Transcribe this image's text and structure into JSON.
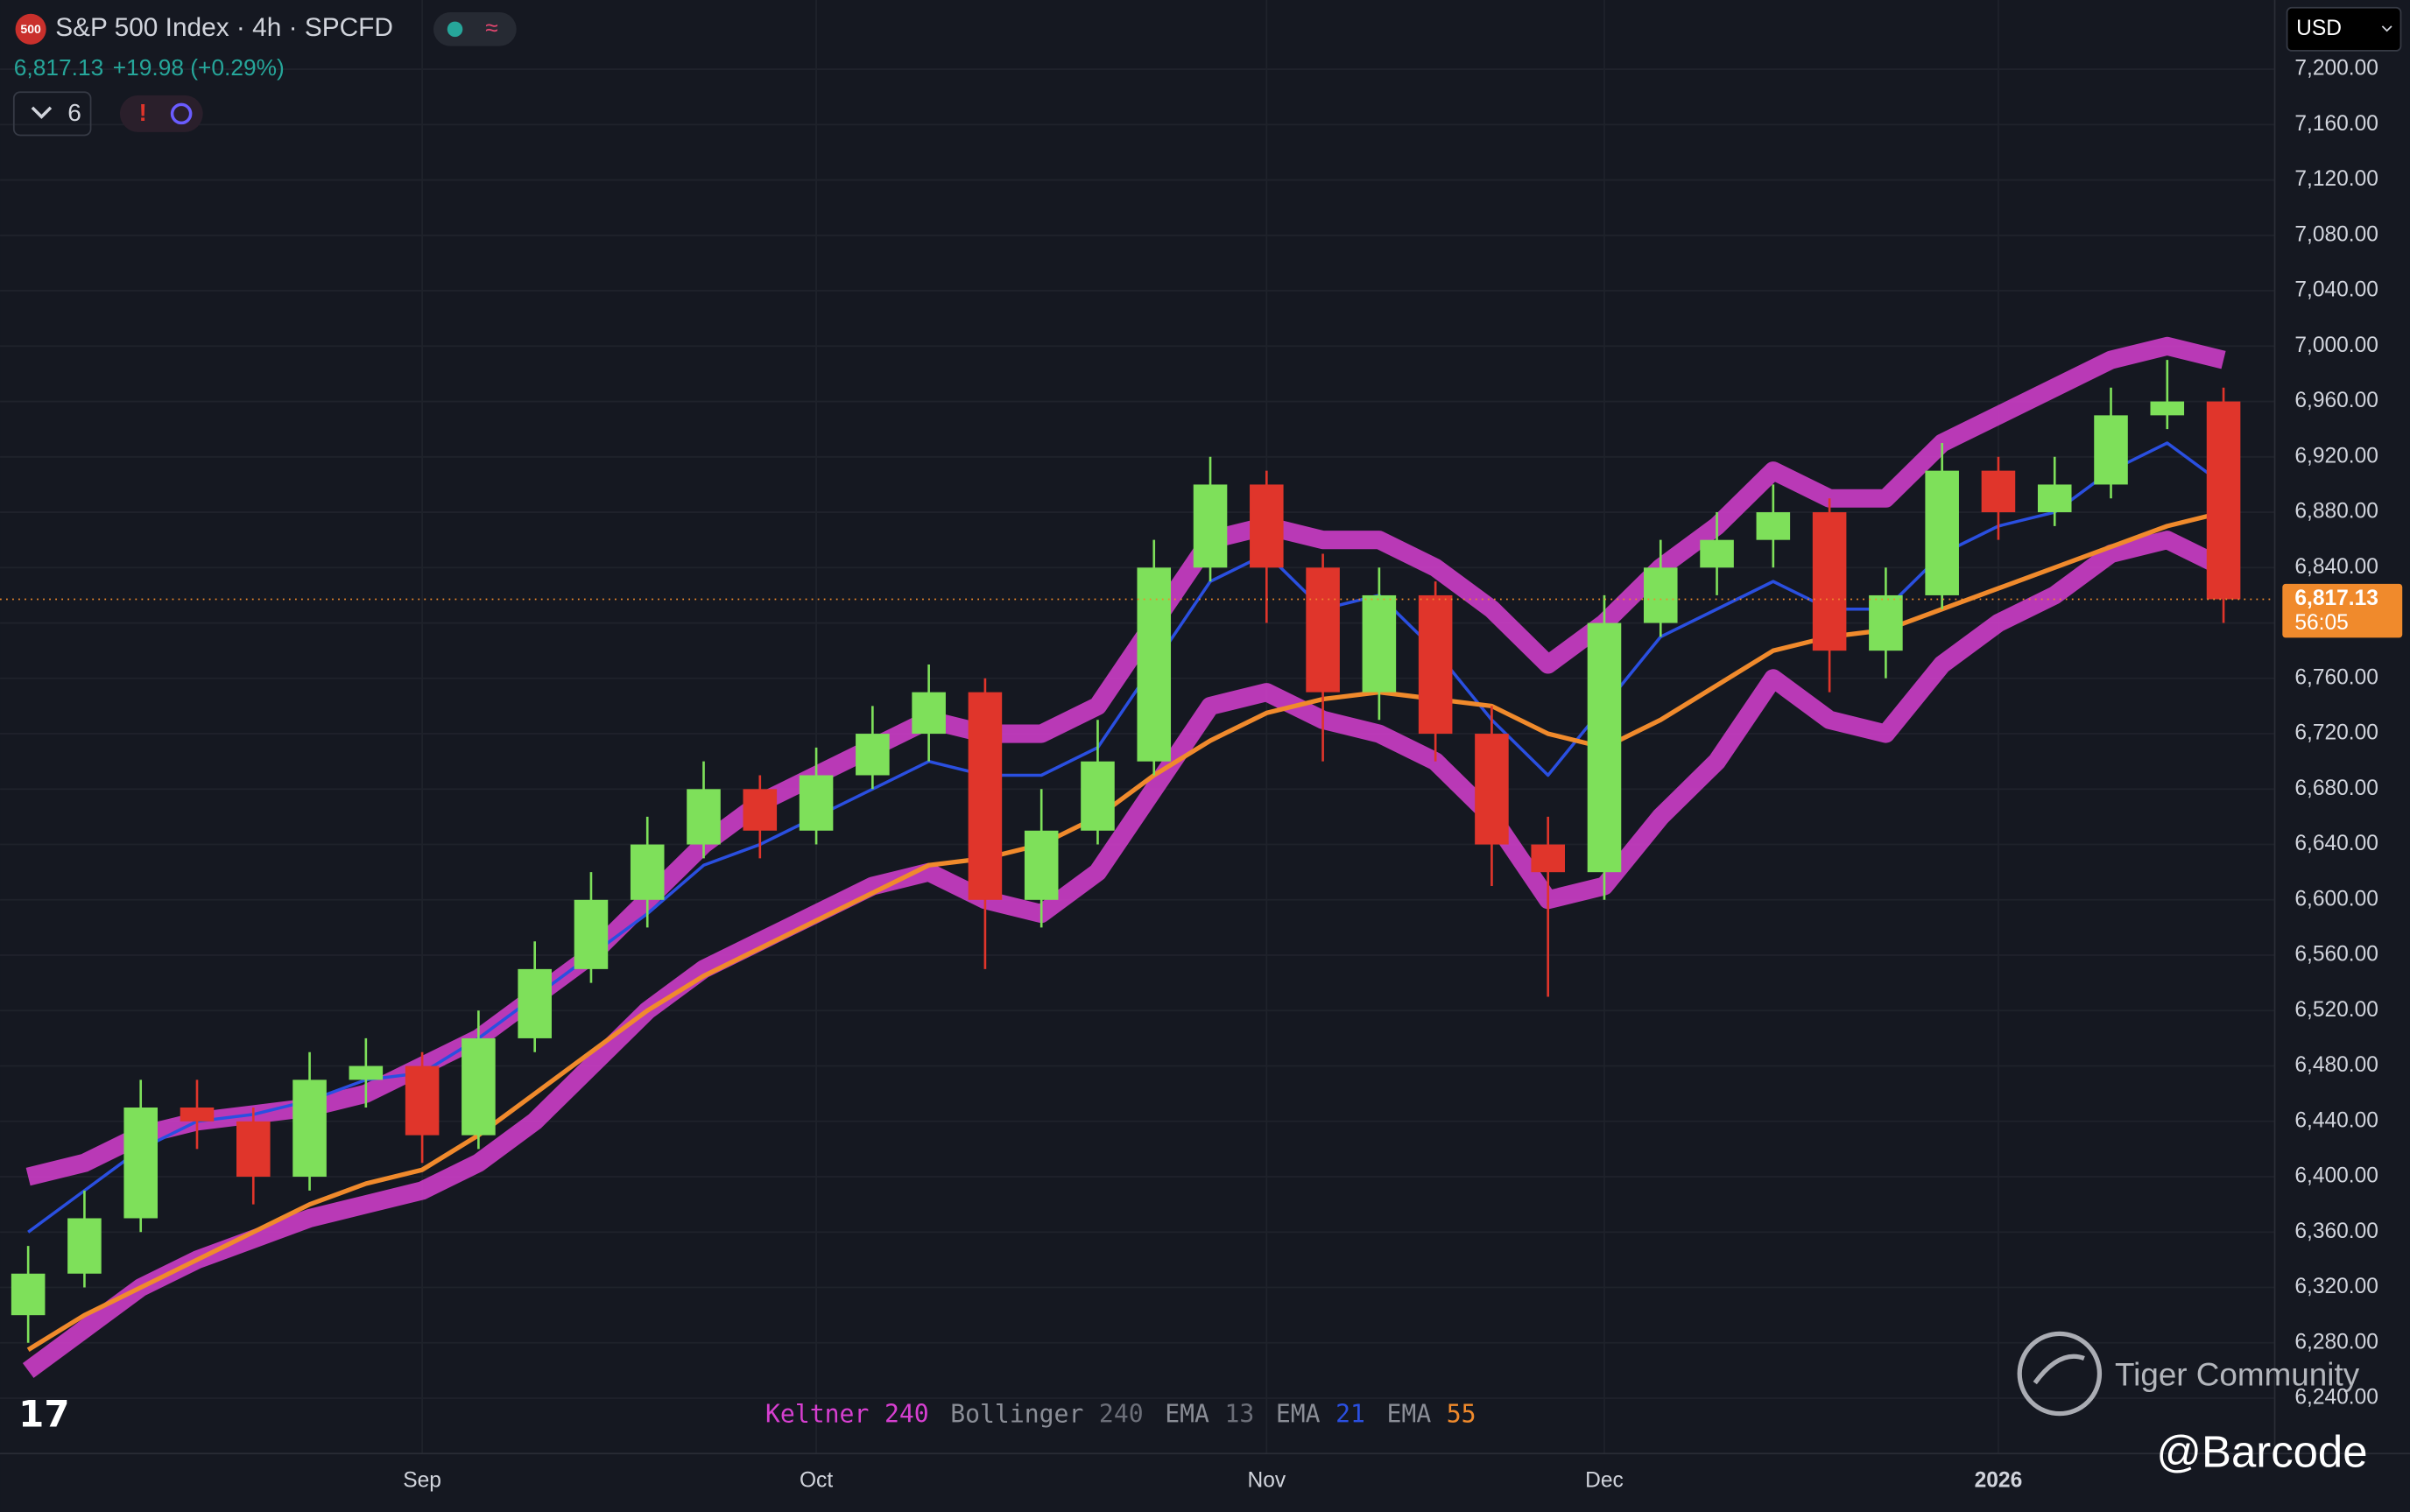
{
  "chart_data": {
    "type": "candlestick",
    "badge": "500",
    "title": "S&P 500 Index · 4h · SPCFD",
    "change": "+19.98 (+0.29%)",
    "indicator_count": "6",
    "currency": "USD",
    "countdown": "56:05",
    "last_price": {
      "value": 6817.13,
      "label": "6,817.13"
    },
    "up_color": "#7ee05a",
    "down_color": "#e0352b",
    "categories": [
      null,
      null,
      null,
      null,
      null,
      null,
      null,
      "Sep",
      null,
      null,
      null,
      null,
      null,
      null,
      "Oct",
      null,
      null,
      null,
      null,
      null,
      null,
      null,
      "Nov",
      null,
      null,
      null,
      null,
      null,
      "Dec",
      null,
      null,
      null,
      null,
      null,
      null,
      "2026",
      null,
      null,
      null,
      null
    ],
    "ohlc": [
      [
        6300,
        6350,
        6280,
        6330
      ],
      [
        6330,
        6390,
        6320,
        6370
      ],
      [
        6370,
        6470,
        6360,
        6450
      ],
      [
        6450,
        6470,
        6420,
        6440
      ],
      [
        6440,
        6450,
        6380,
        6400
      ],
      [
        6400,
        6490,
        6390,
        6470
      ],
      [
        6470,
        6500,
        6450,
        6480
      ],
      [
        6480,
        6490,
        6410,
        6430
      ],
      [
        6430,
        6520,
        6420,
        6500
      ],
      [
        6500,
        6570,
        6490,
        6550
      ],
      [
        6550,
        6620,
        6540,
        6600
      ],
      [
        6600,
        6660,
        6580,
        6640
      ],
      [
        6640,
        6700,
        6630,
        6680
      ],
      [
        6680,
        6690,
        6630,
        6650
      ],
      [
        6650,
        6710,
        6640,
        6690
      ],
      [
        6690,
        6740,
        6680,
        6720
      ],
      [
        6720,
        6770,
        6700,
        6750
      ],
      [
        6750,
        6760,
        6550,
        6600
      ],
      [
        6600,
        6680,
        6580,
        6650
      ],
      [
        6650,
        6730,
        6640,
        6700
      ],
      [
        6700,
        6860,
        6690,
        6840
      ],
      [
        6840,
        6920,
        6830,
        6900
      ],
      [
        6900,
        6910,
        6800,
        6840
      ],
      [
        6840,
        6850,
        6700,
        6750
      ],
      [
        6750,
        6840,
        6730,
        6820
      ],
      [
        6820,
        6830,
        6700,
        6720
      ],
      [
        6720,
        6740,
        6610,
        6640
      ],
      [
        6640,
        6660,
        6530,
        6620
      ],
      [
        6620,
        6820,
        6600,
        6800
      ],
      [
        6800,
        6860,
        6790,
        6840
      ],
      [
        6840,
        6880,
        6820,
        6860
      ],
      [
        6860,
        6900,
        6840,
        6880
      ],
      [
        6880,
        6890,
        6750,
        6780
      ],
      [
        6780,
        6840,
        6760,
        6820
      ],
      [
        6820,
        6930,
        6810,
        6910
      ],
      [
        6910,
        6920,
        6860,
        6880
      ],
      [
        6880,
        6920,
        6870,
        6900
      ],
      [
        6900,
        6970,
        6890,
        6950
      ],
      [
        6950,
        6990,
        6940,
        6960
      ],
      [
        6960,
        6970,
        6800,
        6817.13
      ]
    ],
    "indicators": [
      {
        "name": "Keltner",
        "period": 240,
        "color": "#d63fd0",
        "upper": [
          6400,
          6410,
          6430,
          6440,
          6445,
          6450,
          6460,
          6480,
          6500,
          6530,
          6560,
          6600,
          6640,
          6670,
          6690,
          6710,
          6730,
          6720,
          6720,
          6740,
          6800,
          6860,
          6870,
          6860,
          6860,
          6840,
          6810,
          6770,
          6800,
          6840,
          6870,
          6910,
          6890,
          6890,
          6930,
          6950,
          6970,
          6990,
          7000,
          6990
        ],
        "lower": [
          6260,
          6290,
          6320,
          6340,
          6355,
          6370,
          6380,
          6390,
          6410,
          6440,
          6480,
          6520,
          6550,
          6570,
          6590,
          6610,
          6620,
          6600,
          6590,
          6620,
          6680,
          6740,
          6750,
          6730,
          6720,
          6700,
          6660,
          6600,
          6610,
          6660,
          6700,
          6760,
          6730,
          6720,
          6770,
          6800,
          6820,
          6850,
          6860,
          6840
        ]
      },
      {
        "name": "Bollinger",
        "period": 240,
        "color": "#6b6e78"
      },
      {
        "name": "EMA",
        "period": 13,
        "color": "#6b6e78"
      },
      {
        "name": "EMA",
        "period": 21,
        "color": "#2a4fe0",
        "values": [
          6360,
          6390,
          6420,
          6440,
          6445,
          6455,
          6470,
          6475,
          6500,
          6530,
          6560,
          6590,
          6625,
          6640,
          6660,
          6680,
          6700,
          6690,
          6690,
          6710,
          6770,
          6830,
          6850,
          6810,
          6820,
          6780,
          6730,
          6690,
          6740,
          6790,
          6810,
          6830,
          6810,
          6810,
          6850,
          6870,
          6880,
          6910,
          6930,
          6900
        ]
      },
      {
        "name": "EMA",
        "period": 55,
        "color": "#f08a2c",
        "values": [
          6275,
          6300,
          6320,
          6340,
          6360,
          6380,
          6395,
          6405,
          6430,
          6460,
          6490,
          6520,
          6545,
          6565,
          6585,
          6605,
          6625,
          6630,
          6640,
          6660,
          6690,
          6715,
          6735,
          6745,
          6750,
          6745,
          6740,
          6720,
          6710,
          6730,
          6755,
          6780,
          6790,
          6795,
          6810,
          6825,
          6840,
          6855,
          6870,
          6880
        ]
      }
    ],
    "ylim": [
      6200,
      7250
    ],
    "yticks": [
      {
        "value": 6240,
        "label": "6,240.00"
      },
      {
        "value": 6280,
        "label": "6,280.00"
      },
      {
        "value": 6320,
        "label": "6,320.00"
      },
      {
        "value": 6360,
        "label": "6,360.00"
      },
      {
        "value": 6400,
        "label": "6,400.00"
      },
      {
        "value": 6440,
        "label": "6,440.00"
      },
      {
        "value": 6480,
        "label": "6,480.00"
      },
      {
        "value": 6520,
        "label": "6,520.00"
      },
      {
        "value": 6560,
        "label": "6,560.00"
      },
      {
        "value": 6600,
        "label": "6,600.00"
      },
      {
        "value": 6640,
        "label": "6,640.00"
      },
      {
        "value": 6680,
        "label": "6,680.00"
      },
      {
        "value": 6720,
        "label": "6,720.00"
      },
      {
        "value": 6760,
        "label": "6,760.00"
      },
      {
        "value": 6800,
        "label": "6,800.00"
      },
      {
        "value": 6840,
        "label": "6,840.00"
      },
      {
        "value": 6880,
        "label": "6,880.00"
      },
      {
        "value": 6920,
        "label": "6,920.00"
      },
      {
        "value": 6960,
        "label": "6,960.00"
      },
      {
        "value": 7000,
        "label": "7,000.00"
      },
      {
        "value": 7040,
        "label": "7,040.00"
      },
      {
        "value": 7080,
        "label": "7,080.00"
      },
      {
        "value": 7120,
        "label": "7,120.00"
      },
      {
        "value": 7160,
        "label": "7,160.00"
      },
      {
        "value": 7200,
        "label": "7,200.00"
      }
    ],
    "grid": true,
    "watermark": "Tiger Community",
    "author": "@Barcode"
  }
}
